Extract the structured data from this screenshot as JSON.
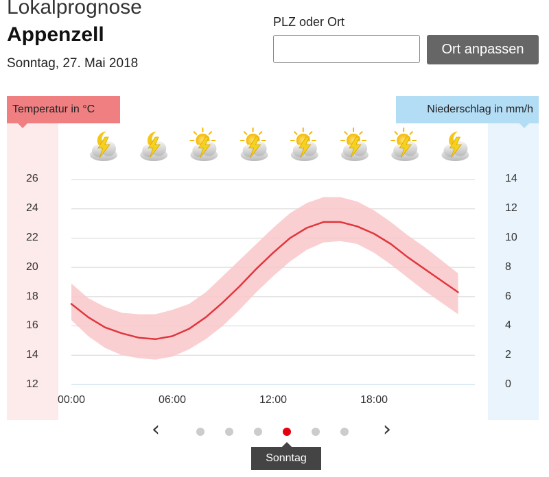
{
  "header": {
    "subtitle": "Lokalprognose",
    "location": "Appenzell",
    "date": "Sonntag, 27. Mai 2018"
  },
  "search": {
    "label": "PLZ oder Ort",
    "value": "",
    "placeholder": "",
    "button_label": "Ort anpassen"
  },
  "axes": {
    "left_title": "Temperatur in °C",
    "right_title": "Niederschlag in mm/h",
    "left_ticks": [
      "26",
      "24",
      "22",
      "20",
      "18",
      "16",
      "14",
      "12"
    ],
    "right_ticks": [
      "14",
      "12",
      "10",
      "8",
      "6",
      "4",
      "2",
      "0"
    ],
    "x_ticks": [
      "00:00",
      "06:00",
      "12:00",
      "18:00"
    ]
  },
  "weather_icons": [
    "moon-cloud-thunder-icon",
    "moon-cloud-thunder-icon",
    "sun-cloud-thunder-icon",
    "sun-cloud-thunder-icon",
    "sun-cloud-thunder-icon",
    "sun-cloud-thunder-icon",
    "sun-cloud-thunder-icon",
    "moon-cloud-thunder-icon"
  ],
  "chart_data": {
    "type": "line",
    "xlabel": "",
    "ylabel": "Temperatur in °C",
    "y2label": "Niederschlag in mm/h",
    "x": [
      0,
      1,
      2,
      3,
      4,
      5,
      6,
      7,
      8,
      9,
      10,
      11,
      12,
      13,
      14,
      15,
      16,
      17,
      18,
      19,
      20,
      21,
      22
    ],
    "x_unit": "hours",
    "ylim": [
      12,
      26
    ],
    "y2lim": [
      0,
      14
    ],
    "xlim": [
      0,
      23
    ],
    "series": [
      {
        "values": [
          17.5,
          16.6,
          15.9,
          15.5,
          15.2,
          15.1,
          15.3,
          15.8,
          16.6,
          17.6,
          18.7,
          19.9,
          21.0,
          22.0,
          22.7,
          23.1,
          23.1,
          22.8,
          22.3,
          21.6,
          20.7,
          19.9,
          19.1,
          18.3
        ],
        "x": [
          0,
          1,
          2,
          3,
          4,
          5,
          6,
          7,
          8,
          9,
          10,
          11,
          12,
          13,
          14,
          15,
          16,
          17,
          18,
          19,
          20,
          21,
          22,
          23
        ]
      }
    ],
    "band": {
      "x": [
        0,
        1,
        2,
        3,
        4,
        5,
        6,
        7,
        8,
        9,
        10,
        11,
        12,
        13,
        14,
        15,
        16,
        17,
        18,
        19,
        20,
        21,
        22,
        23
      ],
      "upper": [
        18.9,
        17.9,
        17.3,
        16.9,
        16.8,
        16.8,
        17.1,
        17.5,
        18.3,
        19.4,
        20.5,
        21.6,
        22.7,
        23.7,
        24.4,
        24.8,
        24.8,
        24.5,
        23.9,
        23.1,
        22.2,
        21.4,
        20.5,
        19.6
      ],
      "lower": [
        16.4,
        15.3,
        14.5,
        14.0,
        13.8,
        13.7,
        13.9,
        14.4,
        15.1,
        16.0,
        17.1,
        18.3,
        19.4,
        20.4,
        21.2,
        21.7,
        21.8,
        21.6,
        21.0,
        20.2,
        19.3,
        18.4,
        17.6,
        16.8
      ]
    },
    "grid": true,
    "precipitation": []
  },
  "pager": {
    "count": 6,
    "active_index": 3,
    "tooltip": "Sonntag"
  },
  "colors": {
    "temp_line": "#e0363d",
    "temp_band": "#f9c7c9",
    "temp_accent": "#f07f82",
    "precip_accent": "#b3dcf5",
    "active_dot": "#e3000f"
  }
}
